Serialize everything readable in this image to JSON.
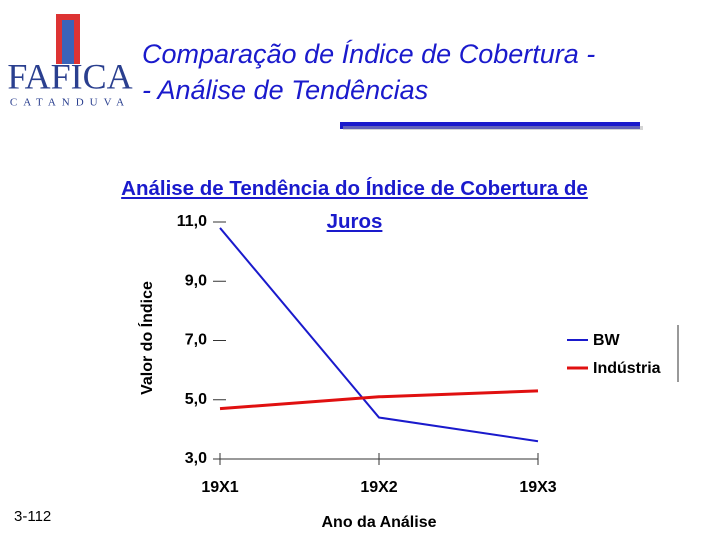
{
  "header": {
    "title_lines": [
      "Comparação de Índice de Cobertura -",
      "- Análise de Tendências"
    ]
  },
  "logo": {
    "name": "FAFICA",
    "subtitle": "CATANDUVA"
  },
  "footer": {
    "page": "3-112"
  },
  "chart_data": {
    "type": "line",
    "title": "Análise de Tendência do Índice de Cobertura de Juros",
    "x_label": "Ano da Análise",
    "y_label": "Valor do Índice",
    "categories": [
      "19X1",
      "19X2",
      "19X3"
    ],
    "series": [
      {
        "name": "BW",
        "color": "#1a1acc",
        "values": [
          10.8,
          4.4,
          3.6
        ]
      },
      {
        "name": "Indústria",
        "color": "#e01010",
        "values": [
          4.7,
          5.1,
          5.3
        ]
      }
    ],
    "ylim": [
      3,
      11
    ],
    "yticks": [
      {
        "value": 3,
        "label": "3,0"
      },
      {
        "value": 5,
        "label": "5,0"
      },
      {
        "value": 7,
        "label": "7,0"
      },
      {
        "value": 9,
        "label": "9,0"
      },
      {
        "value": 11,
        "label": "11,0"
      }
    ],
    "legend": "right"
  }
}
